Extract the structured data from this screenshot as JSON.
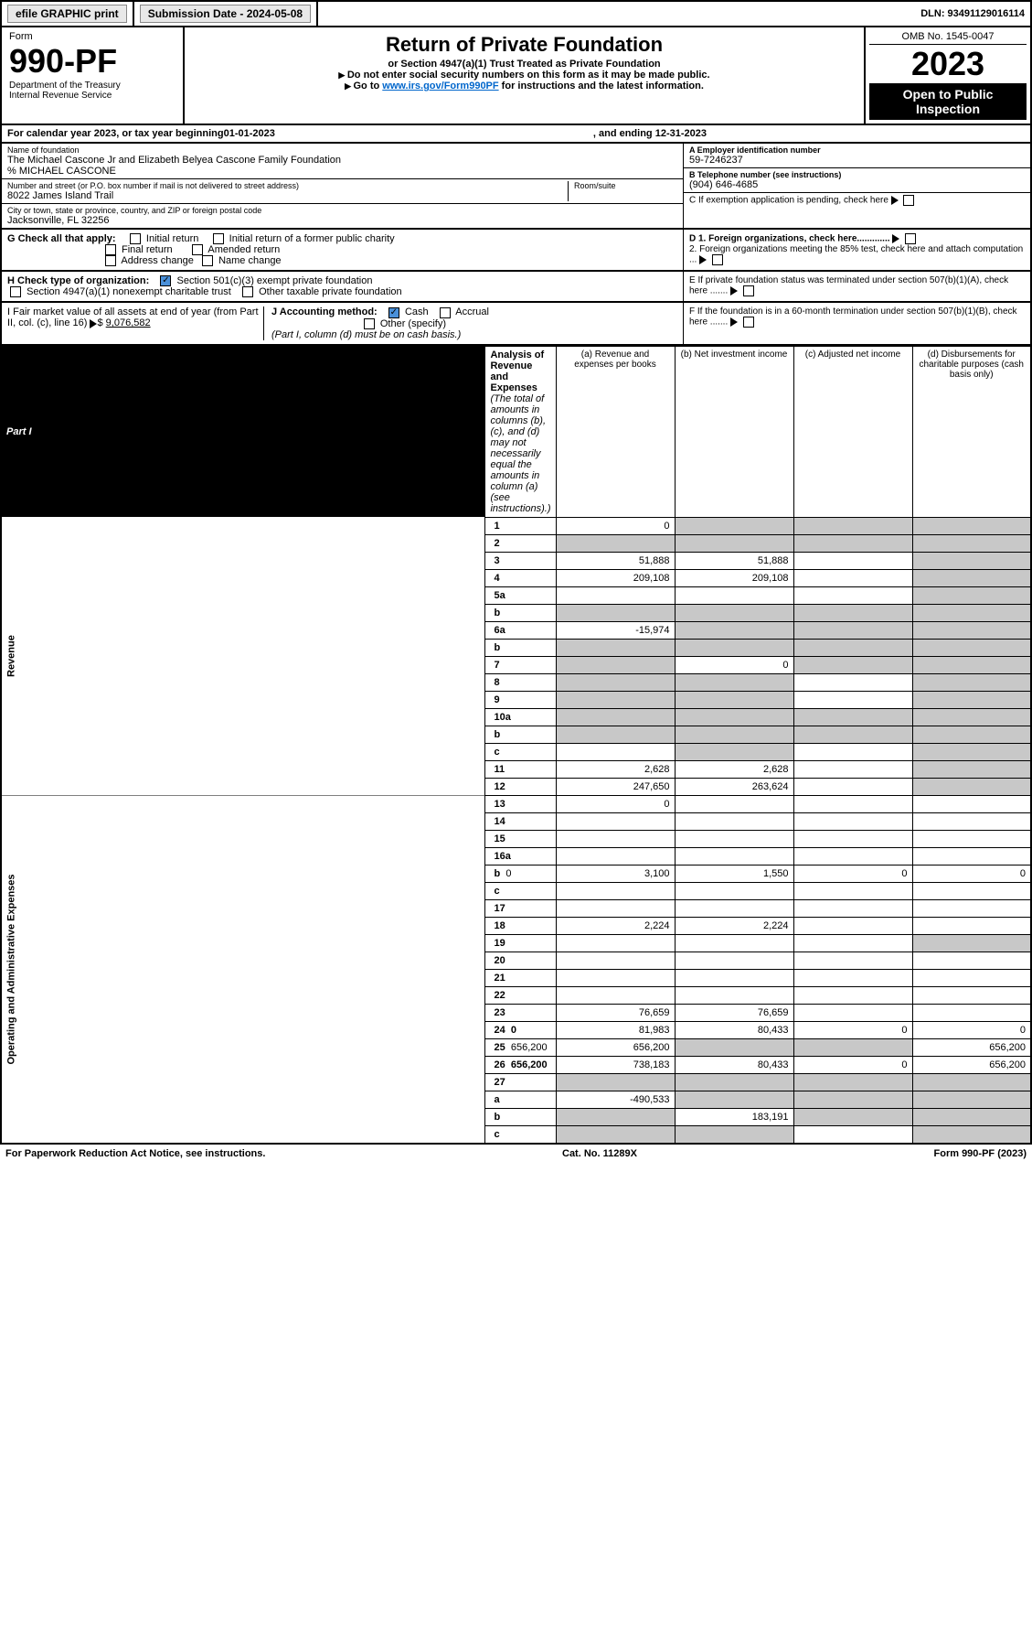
{
  "top": {
    "efile": "efile GRAPHIC print",
    "submission_label": "Submission Date - 2024-05-08",
    "dln": "DLN: 93491129016114"
  },
  "header": {
    "form_label": "Form",
    "form_number": "990-PF",
    "dept": "Department of the Treasury",
    "irs": "Internal Revenue Service",
    "title": "Return of Private Foundation",
    "subtitle": "or Section 4947(a)(1) Trust Treated as Private Foundation",
    "note1": "Do not enter social security numbers on this form as it may be made public.",
    "note2_pre": "Go to ",
    "note2_link": "www.irs.gov/Form990PF",
    "note2_post": " for instructions and the latest information.",
    "omb": "OMB No. 1545-0047",
    "year": "2023",
    "inspect1": "Open to Public",
    "inspect2": "Inspection"
  },
  "cy": {
    "pre": "For calendar year 2023, or tax year beginning ",
    "begin": "01-01-2023",
    "mid": ", and ending ",
    "end": "12-31-2023"
  },
  "info": {
    "name_lbl": "Name of foundation",
    "name": "The Michael Cascone Jr and Elizabeth Belyea Cascone Family Foundation",
    "co": "% MICHAEL CASCONE",
    "addr_lbl": "Number and street (or P.O. box number if mail is not delivered to street address)",
    "addr": "8022 James Island Trail",
    "room_lbl": "Room/suite",
    "city_lbl": "City or town, state or province, country, and ZIP or foreign postal code",
    "city": "Jacksonville, FL  32256",
    "ein_lbl": "A Employer identification number",
    "ein": "59-7246237",
    "tel_lbl": "B Telephone number (see instructions)",
    "tel": "(904) 646-4685",
    "c_lbl": "C If exemption application is pending, check here",
    "d1": "D 1. Foreign organizations, check here.............",
    "d2": "2. Foreign organizations meeting the 85% test, check here and attach computation ...",
    "e": "E  If private foundation status was terminated under section 507(b)(1)(A), check here .......",
    "f": "F  If the foundation is in a 60-month termination under section 507(b)(1)(B), check here ......."
  },
  "g": {
    "lbl": "G Check all that apply:",
    "o1": "Initial return",
    "o2": "Initial return of a former public charity",
    "o3": "Final return",
    "o4": "Amended return",
    "o5": "Address change",
    "o6": "Name change"
  },
  "h": {
    "lbl": "H Check type of organization:",
    "o1": "Section 501(c)(3) exempt private foundation",
    "o2": "Section 4947(a)(1) nonexempt charitable trust",
    "o3": "Other taxable private foundation"
  },
  "i": {
    "lbl": "I Fair market value of all assets at end of year (from Part II, col. (c), line 16)",
    "val": "9,076,582"
  },
  "j": {
    "lbl": "J Accounting method:",
    "o1": "Cash",
    "o2": "Accrual",
    "o3": "Other (specify)",
    "note": "(Part I, column (d) must be on cash basis.)"
  },
  "part1": {
    "tag": "Part I",
    "title": "Analysis of Revenue and Expenses",
    "note": " (The total of amounts in columns (b), (c), and (d) may not necessarily equal the amounts in column (a) (see instructions).)",
    "col_a": "(a)   Revenue and expenses per books",
    "col_b": "(b)   Net investment income",
    "col_c": "(c)   Adjusted net income",
    "col_d": "(d)   Disbursements for charitable purposes (cash basis only)"
  },
  "side": {
    "rev": "Revenue",
    "exp": "Operating and Administrative Expenses"
  },
  "rows": [
    {
      "n": "1",
      "d": "",
      "a": "0",
      "b": "",
      "c": "",
      "sb": true,
      "sc": true,
      "sd": true
    },
    {
      "n": "2",
      "d": "",
      "a": "",
      "b": "",
      "c": "",
      "sa": true,
      "sb": true,
      "sc": true,
      "sd": true,
      "bold": true
    },
    {
      "n": "3",
      "d": "",
      "a": "51,888",
      "b": "51,888",
      "c": "",
      "sd": true
    },
    {
      "n": "4",
      "d": "",
      "a": "209,108",
      "b": "209,108",
      "c": "",
      "sd": true
    },
    {
      "n": "5a",
      "d": "",
      "a": "",
      "b": "",
      "c": "",
      "sd": true
    },
    {
      "n": "b",
      "d": "",
      "a": "",
      "b": "",
      "c": "",
      "sa": true,
      "sb": true,
      "sc": true,
      "sd": true
    },
    {
      "n": "6a",
      "d": "",
      "a": "-15,974",
      "b": "",
      "c": "",
      "sb": true,
      "sc": true,
      "sd": true
    },
    {
      "n": "b",
      "d": "",
      "a": "",
      "b": "",
      "c": "",
      "sa": true,
      "sb": true,
      "sc": true,
      "sd": true
    },
    {
      "n": "7",
      "d": "",
      "a": "",
      "b": "0",
      "c": "",
      "sa": true,
      "sc": true,
      "sd": true
    },
    {
      "n": "8",
      "d": "",
      "a": "",
      "b": "",
      "c": "",
      "sa": true,
      "sb": true,
      "sd": true
    },
    {
      "n": "9",
      "d": "",
      "a": "",
      "b": "",
      "c": "",
      "sa": true,
      "sb": true,
      "sd": true
    },
    {
      "n": "10a",
      "d": "",
      "a": "",
      "b": "",
      "c": "",
      "sa": true,
      "sb": true,
      "sc": true,
      "sd": true
    },
    {
      "n": "b",
      "d": "",
      "a": "",
      "b": "",
      "c": "",
      "sa": true,
      "sb": true,
      "sc": true,
      "sd": true
    },
    {
      "n": "c",
      "d": "",
      "a": "",
      "b": "",
      "c": "",
      "sb": true,
      "sd": true
    },
    {
      "n": "11",
      "d": "",
      "a": "2,628",
      "b": "2,628",
      "c": "",
      "sd": true
    },
    {
      "n": "12",
      "d": "",
      "a": "247,650",
      "b": "263,624",
      "c": "",
      "sd": true,
      "bold": true
    },
    {
      "n": "13",
      "d": "",
      "a": "0",
      "b": "",
      "c": ""
    },
    {
      "n": "14",
      "d": "",
      "a": "",
      "b": "",
      "c": ""
    },
    {
      "n": "15",
      "d": "",
      "a": "",
      "b": "",
      "c": ""
    },
    {
      "n": "16a",
      "d": "",
      "a": "",
      "b": "",
      "c": ""
    },
    {
      "n": "b",
      "d": "0",
      "a": "3,100",
      "b": "1,550",
      "c": "0"
    },
    {
      "n": "c",
      "d": "",
      "a": "",
      "b": "",
      "c": ""
    },
    {
      "n": "17",
      "d": "",
      "a": "",
      "b": "",
      "c": ""
    },
    {
      "n": "18",
      "d": "",
      "a": "2,224",
      "b": "2,224",
      "c": ""
    },
    {
      "n": "19",
      "d": "",
      "a": "",
      "b": "",
      "c": "",
      "sd": true
    },
    {
      "n": "20",
      "d": "",
      "a": "",
      "b": "",
      "c": ""
    },
    {
      "n": "21",
      "d": "",
      "a": "",
      "b": "",
      "c": ""
    },
    {
      "n": "22",
      "d": "",
      "a": "",
      "b": "",
      "c": ""
    },
    {
      "n": "23",
      "d": "",
      "a": "76,659",
      "b": "76,659",
      "c": ""
    },
    {
      "n": "24",
      "d": "0",
      "a": "81,983",
      "b": "80,433",
      "c": "0",
      "bold": true
    },
    {
      "n": "25",
      "d": "656,200",
      "a": "656,200",
      "b": "",
      "c": "",
      "sb": true,
      "sc": true
    },
    {
      "n": "26",
      "d": "656,200",
      "a": "738,183",
      "b": "80,433",
      "c": "0",
      "bold": true
    },
    {
      "n": "27",
      "d": "",
      "a": "",
      "b": "",
      "c": "",
      "sa": true,
      "sb": true,
      "sc": true,
      "sd": true
    },
    {
      "n": "a",
      "d": "",
      "a": "-490,533",
      "b": "",
      "c": "",
      "sb": true,
      "sc": true,
      "sd": true,
      "bold": true
    },
    {
      "n": "b",
      "d": "",
      "a": "",
      "b": "183,191",
      "c": "",
      "sa": true,
      "sc": true,
      "sd": true,
      "bold": true
    },
    {
      "n": "c",
      "d": "",
      "a": "",
      "b": "",
      "c": "",
      "sa": true,
      "sb": true,
      "sd": true,
      "bold": true
    }
  ],
  "footer": {
    "left": "For Paperwork Reduction Act Notice, see instructions.",
    "mid": "Cat. No. 11289X",
    "right": "Form 990-PF (2023)"
  }
}
